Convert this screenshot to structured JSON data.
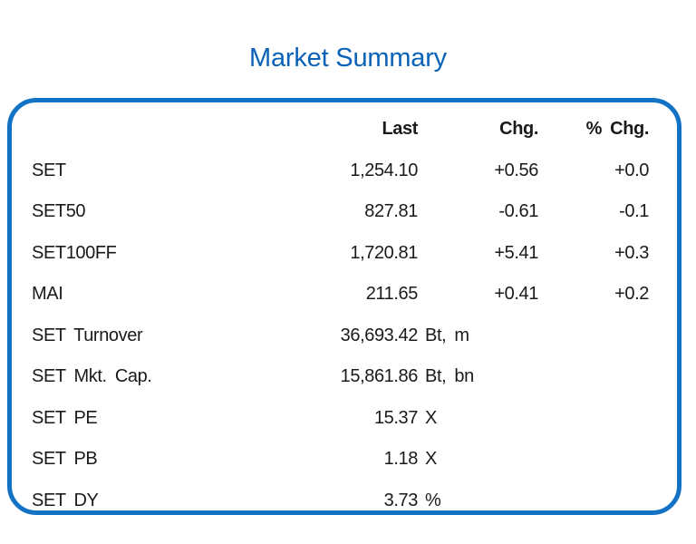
{
  "title": "Market Summary",
  "colors": {
    "title_blue": "#0a62b8",
    "border_blue": "#1273c6",
    "text": "#1a1a1a",
    "background": "#ffffff"
  },
  "headers": {
    "last": "Last",
    "chg": "Chg.",
    "pct_chg": "% Chg."
  },
  "rows": [
    {
      "label": "SET",
      "num": "1,254.10",
      "unit": "",
      "chg": "+0.56",
      "pct": "+0.0"
    },
    {
      "label": "SET50",
      "num": "827.81",
      "unit": "",
      "chg": "-0.61",
      "pct": "-0.1"
    },
    {
      "label": "SET100FF",
      "num": "1,720.81",
      "unit": "",
      "chg": "+5.41",
      "pct": "+0.3"
    },
    {
      "label": "MAI",
      "num": "211.65",
      "unit": "",
      "chg": "+0.41",
      "pct": "+0.2"
    },
    {
      "label": "SET Turnover",
      "num": "36,693.42",
      "unit": "Bt, m",
      "chg": "",
      "pct": ""
    },
    {
      "label": "SET Mkt. Cap.",
      "num": "15,861.86",
      "unit": "Bt, bn",
      "chg": "",
      "pct": ""
    },
    {
      "label": "SET PE",
      "num": "15.37",
      "unit": "X",
      "chg": "",
      "pct": ""
    },
    {
      "label": "SET PB",
      "num": "1.18",
      "unit": "X",
      "chg": "",
      "pct": ""
    },
    {
      "label": "SET DY",
      "num": "3.73",
      "unit": "%",
      "chg": "",
      "pct": ""
    }
  ],
  "chart_data": {
    "type": "table",
    "title": "Market Summary",
    "columns": [
      "",
      "Last",
      "Chg.",
      "% Chg."
    ],
    "rows": [
      [
        "SET",
        "1,254.10",
        "+0.56",
        "+0.0"
      ],
      [
        "SET50",
        "827.81",
        "-0.61",
        "-0.1"
      ],
      [
        "SET100FF",
        "1,720.81",
        "+5.41",
        "+0.3"
      ],
      [
        "MAI",
        "211.65",
        "+0.41",
        "+0.2"
      ],
      [
        "SET Turnover",
        "36,693.42 Bt, m",
        "",
        ""
      ],
      [
        "SET Mkt. Cap.",
        "15,861.86 Bt, bn",
        "",
        ""
      ],
      [
        "SET PE",
        "15.37 X",
        "",
        ""
      ],
      [
        "SET PB",
        "1.18 X",
        "",
        ""
      ],
      [
        "SET DY",
        "3.73 %",
        "",
        ""
      ]
    ],
    "layout": {
      "title_position": "top-center",
      "value_alignment": "right",
      "border": "rounded-blue-box"
    }
  }
}
